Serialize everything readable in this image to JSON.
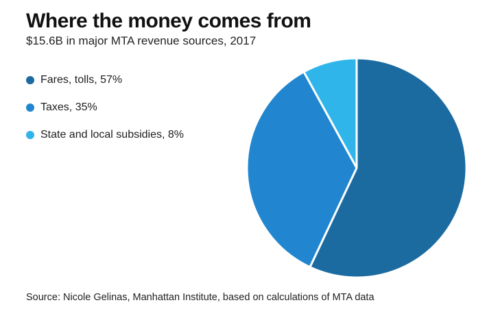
{
  "header": {
    "title": "Where the money comes from",
    "subtitle": "$15.6B in major MTA revenue sources, 2017"
  },
  "footer": {
    "source": "Source: Nicole Gelinas, Manhattan Institute, based on calculations of MTA data"
  },
  "chart_data": {
    "type": "pie",
    "title": "Where the money comes from",
    "subtitle": "$15.6B in major MTA revenue sources, 2017",
    "total_label": "$15.6B",
    "units": "percent",
    "start_angle_deg": 0,
    "direction": "clockwise",
    "legend_position": "left",
    "slice_gap_color": "#ffffff",
    "slices": [
      {
        "label": "Fares, tolls",
        "value": 57,
        "display": "Fares, tolls, 57%",
        "color": "#1b6ba1"
      },
      {
        "label": "Taxes",
        "value": 35,
        "display": "Taxes, 35%",
        "color": "#2186cf"
      },
      {
        "label": "State and local subsidies",
        "value": 8,
        "display": "State and local subsidies, 8%",
        "color": "#30b5ea"
      }
    ]
  }
}
